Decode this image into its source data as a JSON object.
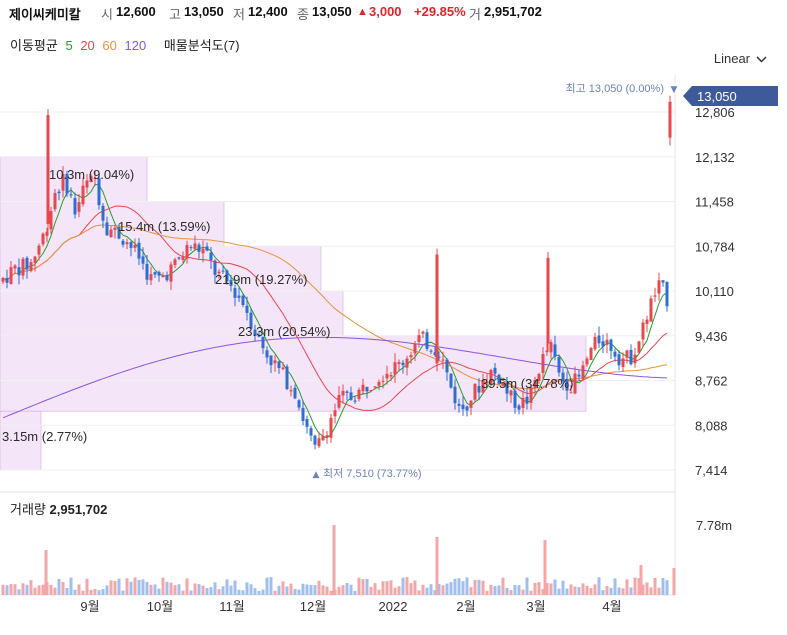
{
  "header": {
    "name": "제이씨케미칼",
    "open_label": "시",
    "open": "12,600",
    "high_label": "고",
    "high": "13,050",
    "low_label": "저",
    "low": "12,400",
    "close_label": "종",
    "close": "13,050",
    "change_arrow": "▲",
    "change": "3,000",
    "change_pct": "+29.85%",
    "volume_label": "거",
    "volume": "2,951,702"
  },
  "ma_legend": {
    "label": "이동평균",
    "periods": [
      {
        "value": "5",
        "color": "#22a02a"
      },
      {
        "value": "20",
        "color": "#e8484b"
      },
      {
        "value": "60",
        "color": "#e8923e"
      },
      {
        "value": "120",
        "color": "#8b55e0"
      }
    ],
    "analysis_label": "매물분석도(7)"
  },
  "scale_selector": {
    "label": "Linear",
    "icon": "chevron-down-icon"
  },
  "volume_panel": {
    "label": "거래량",
    "value": "2,951,702",
    "axis_tick": "7.78m"
  },
  "colors": {
    "up": "#e8484b",
    "down": "#2b6fd6",
    "price_tag": "#3f5a9a",
    "profile": "#f2dcf6"
  },
  "chart_data": {
    "type": "candlestick",
    "y_ticks": [
      "12,806",
      "12,132",
      "11,458",
      "10,784",
      "10,110",
      "9,436",
      "8,762",
      "8,088",
      "7,414"
    ],
    "y_tick_values": [
      12806,
      12132,
      11458,
      10784,
      10110,
      9436,
      8762,
      8088,
      7414
    ],
    "x_ticks": [
      "9월",
      "10월",
      "11월",
      "12월",
      "2022",
      "2월",
      "3월",
      "4월"
    ],
    "current_price": {
      "label": "13,050",
      "value": 13050
    },
    "max_annotation": {
      "text": "최고 13,050 (0.00%)",
      "arrow": "▼",
      "value": 13050
    },
    "min_annotation": {
      "text": "최저 7,510 (73.77%)",
      "arrow": "▲",
      "value": 7510
    },
    "volume_profile": [
      {
        "label": "10.3m (9.04%)",
        "low": 11458,
        "high": 12132
      },
      {
        "label": "15.4m (13.59%)",
        "low": 10784,
        "high": 11458
      },
      {
        "label": "21.9m (19.27%)",
        "low": 10110,
        "high": 10784
      },
      {
        "label": "23.3m (20.54%)",
        "low": 9436,
        "high": 10110
      },
      {
        "label": "39.5m (34.78%)",
        "low": 8300,
        "high": 9436
      },
      {
        "label": "3.15m (2.77%)",
        "low": 7414,
        "high": 8300
      }
    ],
    "candles": [],
    "ma_series": [
      {
        "name": "5",
        "color": "#22a02a"
      },
      {
        "name": "20",
        "color": "#e8484b"
      },
      {
        "name": "60",
        "color": "#e8923e"
      },
      {
        "name": "120",
        "color": "#8b55e0"
      }
    ]
  }
}
